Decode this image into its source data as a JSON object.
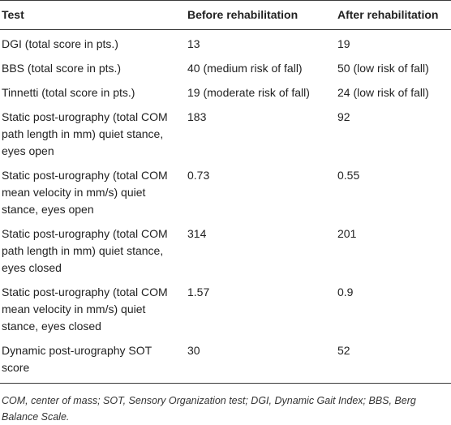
{
  "table": {
    "headers": [
      "Test",
      "Before rehabilitation",
      "After rehabilitation"
    ],
    "rows": [
      [
        "DGI (total score in pts.)",
        "13",
        "19"
      ],
      [
        "BBS (total score in pts.)",
        "40 (medium risk of fall)",
        "50 (low risk of fall)"
      ],
      [
        "Tinnetti (total score in pts.)",
        "19 (moderate risk of fall)",
        "24 (low risk of fall)"
      ],
      [
        "Static post-urography (total COM path length in mm) quiet stance, eyes open",
        "183",
        "92"
      ],
      [
        "Static post-urography (total COM mean velocity in mm/s) quiet stance, eyes open",
        "0.73",
        "0.55"
      ],
      [
        "Static post-urography (total COM path length in mm) quiet stance, eyes closed",
        "314",
        "201"
      ],
      [
        "Static post-urography (total COM mean velocity in mm/s) quiet stance, eyes closed",
        "1.57",
        "0.9"
      ],
      [
        "Dynamic post-urography SOT score",
        "30",
        "52"
      ]
    ]
  },
  "footnote": "COM, center of mass; SOT, Sensory Organization test; DGI, Dynamic Gait Index; BBS, Berg Balance Scale."
}
